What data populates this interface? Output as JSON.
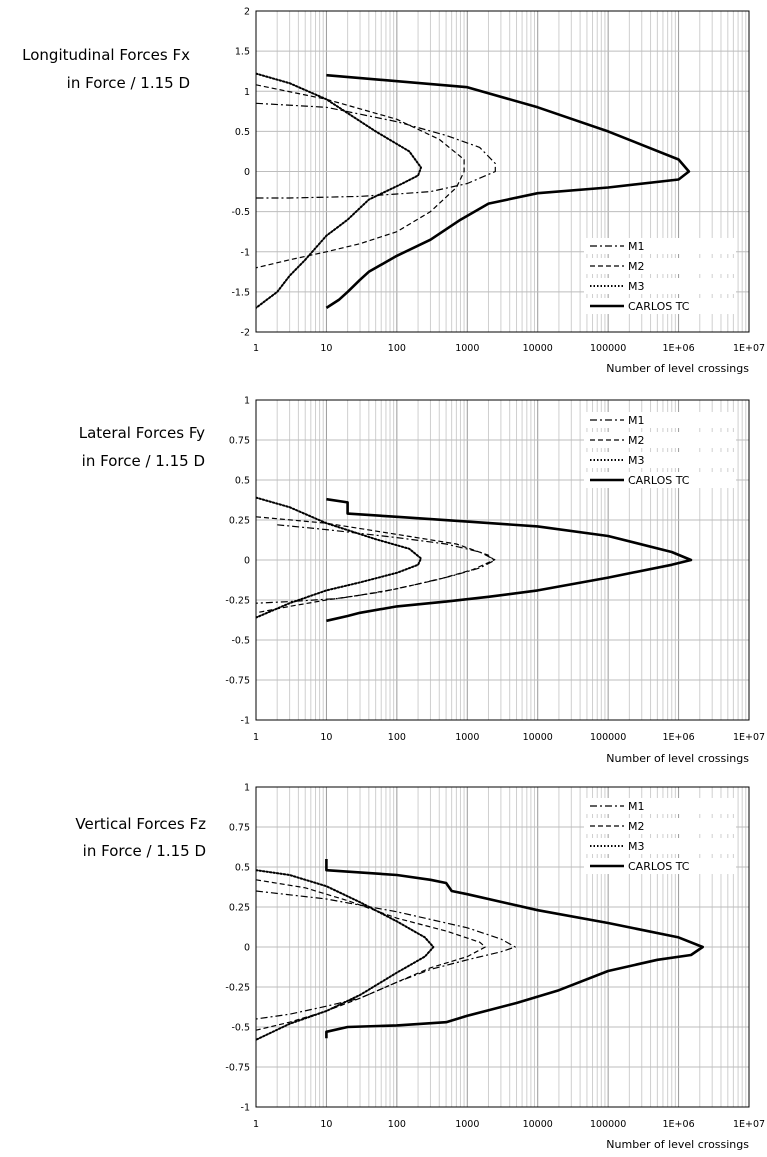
{
  "chart_data": [
    {
      "type": "line",
      "title_lines": [
        "Longitudinal Forces Fx",
        "in Force / 1.15 D"
      ],
      "xlabel": "Number of level crossings",
      "ylabel": "",
      "x_scale": "log",
      "xlim": [
        1,
        10000000
      ],
      "ylim": [
        -2,
        2
      ],
      "x_tick_labels": [
        "1",
        "10",
        "100",
        "1000",
        "10000",
        "100000",
        "1E+06",
        "1E+07"
      ],
      "y_tick_labels": [
        "2",
        "1.5",
        "1",
        "0.5",
        "0",
        "-0.5",
        "-1",
        "-1.5",
        "-2"
      ],
      "grid": true,
      "legend_position": "bottom-right",
      "series": [
        {
          "name": "M1",
          "style": "dashdot",
          "points": [
            [
              1,
              0.85
            ],
            [
              10,
              0.8
            ],
            [
              100,
              0.62
            ],
            [
              500,
              0.45
            ],
            [
              1500,
              0.3
            ],
            [
              2500,
              0.1
            ],
            [
              2500,
              0
            ],
            [
              1000,
              -0.15
            ],
            [
              300,
              -0.25
            ],
            [
              100,
              -0.28
            ],
            [
              30,
              -0.31
            ],
            [
              3,
              -0.33
            ],
            [
              1,
              -0.33
            ]
          ]
        },
        {
          "name": "M2",
          "style": "dashed",
          "points": [
            [
              1,
              1.08
            ],
            [
              10,
              0.9
            ],
            [
              100,
              0.65
            ],
            [
              400,
              0.4
            ],
            [
              900,
              0.15
            ],
            [
              900,
              0
            ],
            [
              700,
              -0.2
            ],
            [
              300,
              -0.5
            ],
            [
              100,
              -0.75
            ],
            [
              30,
              -0.9
            ],
            [
              10,
              -1.0
            ],
            [
              3,
              -1.1
            ],
            [
              1,
              -1.2
            ]
          ]
        },
        {
          "name": "M3",
          "style": "dotted",
          "points": [
            [
              1,
              1.22
            ],
            [
              3,
              1.1
            ],
            [
              10,
              0.9
            ],
            [
              50,
              0.5
            ],
            [
              150,
              0.25
            ],
            [
              220,
              0.05
            ],
            [
              200,
              -0.05
            ],
            [
              120,
              -0.15
            ],
            [
              40,
              -0.35
            ],
            [
              20,
              -0.6
            ],
            [
              10,
              -0.8
            ],
            [
              5,
              -1.1
            ],
            [
              3,
              -1.3
            ],
            [
              2,
              -1.5
            ],
            [
              1,
              -1.7
            ]
          ]
        },
        {
          "name": "CARLOS TC",
          "style": "solid",
          "points": [
            [
              10,
              1.2
            ],
            [
              1000,
              1.05
            ],
            [
              10000,
              0.8
            ],
            [
              100000,
              0.5
            ],
            [
              1000000,
              0.15
            ],
            [
              1400000,
              0
            ],
            [
              1000000,
              -0.1
            ],
            [
              100000,
              -0.2
            ],
            [
              10000,
              -0.27
            ],
            [
              2000,
              -0.4
            ],
            [
              800,
              -0.6
            ],
            [
              300,
              -0.85
            ],
            [
              100,
              -1.05
            ],
            [
              40,
              -1.25
            ],
            [
              30,
              -1.35
            ],
            [
              20,
              -1.5
            ],
            [
              15,
              -1.6
            ],
            [
              10,
              -1.7
            ]
          ]
        }
      ]
    },
    {
      "type": "line",
      "title_lines": [
        "Lateral Forces Fy",
        "in Force / 1.15 D"
      ],
      "xlabel": "Number of level crossings",
      "ylabel": "",
      "x_scale": "log",
      "xlim": [
        1,
        10000000
      ],
      "ylim": [
        -1,
        1
      ],
      "x_tick_labels": [
        "1",
        "10",
        "100",
        "1000",
        "10000",
        "100000",
        "1E+06",
        "1E+07"
      ],
      "y_tick_labels": [
        "1",
        "0.75",
        "0.5",
        "0.25",
        "0",
        "-0.25",
        "-0.5",
        "-0.75",
        "-1"
      ],
      "grid": true,
      "legend_position": "top-right",
      "series": [
        {
          "name": "M1",
          "style": "dashdot",
          "points": [
            [
              2,
              0.22
            ],
            [
              10,
              0.19
            ],
            [
              100,
              0.14
            ],
            [
              500,
              0.1
            ],
            [
              1500,
              0.05
            ],
            [
              2500,
              0
            ],
            [
              1500,
              -0.05
            ],
            [
              600,
              -0.1
            ],
            [
              200,
              -0.15
            ],
            [
              60,
              -0.2
            ],
            [
              15,
              -0.24
            ],
            [
              3,
              -0.26
            ],
            [
              1,
              -0.27
            ]
          ]
        },
        {
          "name": "M2",
          "style": "dashed",
          "points": [
            [
              1,
              0.27
            ],
            [
              10,
              0.23
            ],
            [
              100,
              0.16
            ],
            [
              700,
              0.1
            ],
            [
              2000,
              0.03
            ],
            [
              2400,
              0
            ],
            [
              1200,
              -0.06
            ],
            [
              400,
              -0.12
            ],
            [
              100,
              -0.18
            ],
            [
              30,
              -0.22
            ],
            [
              10,
              -0.25
            ],
            [
              3,
              -0.29
            ],
            [
              1,
              -0.33
            ]
          ]
        },
        {
          "name": "M3",
          "style": "dotted",
          "points": [
            [
              1,
              0.39
            ],
            [
              3,
              0.33
            ],
            [
              10,
              0.23
            ],
            [
              50,
              0.13
            ],
            [
              150,
              0.07
            ],
            [
              220,
              0.01
            ],
            [
              200,
              -0.03
            ],
            [
              100,
              -0.08
            ],
            [
              30,
              -0.14
            ],
            [
              10,
              -0.19
            ],
            [
              3,
              -0.27
            ],
            [
              1,
              -0.36
            ]
          ]
        },
        {
          "name": "CARLOS TC",
          "style": "solid",
          "points": [
            [
              10,
              0.38
            ],
            [
              20,
              0.36
            ],
            [
              20,
              0.29
            ],
            [
              100,
              0.27
            ],
            [
              1000,
              0.24
            ],
            [
              10000,
              0.21
            ],
            [
              100000,
              0.15
            ],
            [
              800000,
              0.05
            ],
            [
              1500000,
              0
            ],
            [
              800000,
              -0.03
            ],
            [
              100000,
              -0.11
            ],
            [
              10000,
              -0.19
            ],
            [
              2000,
              -0.23
            ],
            [
              500,
              -0.26
            ],
            [
              100,
              -0.29
            ],
            [
              30,
              -0.33
            ],
            [
              20,
              -0.35
            ],
            [
              10,
              -0.38
            ]
          ]
        }
      ]
    },
    {
      "type": "line",
      "title_lines": [
        "Vertical Forces Fz",
        "in Force / 1.15 D"
      ],
      "xlabel": "Number of level crossings",
      "ylabel": "",
      "x_scale": "log",
      "xlim": [
        1,
        10000000
      ],
      "ylim": [
        -1,
        1
      ],
      "x_tick_labels": [
        "1",
        "10",
        "100",
        "1000",
        "10000",
        "100000",
        "1E+06",
        "1E+07"
      ],
      "y_tick_labels": [
        "1",
        "0.75",
        "0.5",
        "0.25",
        "0",
        "-0.25",
        "-0.5",
        "-0.75",
        "-1"
      ],
      "grid": true,
      "legend_position": "top-right",
      "series": [
        {
          "name": "M1",
          "style": "dashdot",
          "points": [
            [
              1,
              0.35
            ],
            [
              10,
              0.3
            ],
            [
              100,
              0.22
            ],
            [
              1000,
              0.12
            ],
            [
              3000,
              0.05
            ],
            [
              4800,
              0
            ],
            [
              3000,
              -0.03
            ],
            [
              1000,
              -0.08
            ],
            [
              300,
              -0.14
            ],
            [
              100,
              -0.22
            ],
            [
              30,
              -0.32
            ],
            [
              10,
              -0.37
            ],
            [
              3,
              -0.42
            ],
            [
              1,
              -0.45
            ]
          ]
        },
        {
          "name": "M2",
          "style": "dashed",
          "points": [
            [
              1,
              0.42
            ],
            [
              5,
              0.37
            ],
            [
              20,
              0.29
            ],
            [
              100,
              0.18
            ],
            [
              500,
              0.1
            ],
            [
              1500,
              0.03
            ],
            [
              1800,
              0
            ],
            [
              1000,
              -0.06
            ],
            [
              300,
              -0.13
            ],
            [
              100,
              -0.22
            ],
            [
              30,
              -0.32
            ],
            [
              10,
              -0.4
            ],
            [
              3,
              -0.47
            ],
            [
              1,
              -0.52
            ]
          ]
        },
        {
          "name": "M3",
          "style": "dotted",
          "points": [
            [
              1,
              0.48
            ],
            [
              3,
              0.45
            ],
            [
              10,
              0.38
            ],
            [
              30,
              0.28
            ],
            [
              100,
              0.16
            ],
            [
              250,
              0.06
            ],
            [
              330,
              0
            ],
            [
              250,
              -0.06
            ],
            [
              100,
              -0.16
            ],
            [
              30,
              -0.3
            ],
            [
              10,
              -0.4
            ],
            [
              3,
              -0.48
            ],
            [
              1,
              -0.58
            ]
          ]
        },
        {
          "name": "CARLOS TC",
          "style": "solid",
          "points": [
            [
              10,
              0.55
            ],
            [
              10,
              0.48
            ],
            [
              100,
              0.45
            ],
            [
              300,
              0.42
            ],
            [
              500,
              0.4
            ],
            [
              600,
              0.35
            ],
            [
              1000,
              0.33
            ],
            [
              10000,
              0.23
            ],
            [
              100000,
              0.15
            ],
            [
              1000000,
              0.06
            ],
            [
              2200000,
              0
            ],
            [
              1500000,
              -0.05
            ],
            [
              500000,
              -0.08
            ],
            [
              100000,
              -0.15
            ],
            [
              20000,
              -0.27
            ],
            [
              5000,
              -0.35
            ],
            [
              1000,
              -0.43
            ],
            [
              500,
              -0.47
            ],
            [
              100,
              -0.49
            ],
            [
              20,
              -0.5
            ],
            [
              10,
              -0.53
            ],
            [
              10,
              -0.57
            ]
          ]
        }
      ]
    }
  ]
}
